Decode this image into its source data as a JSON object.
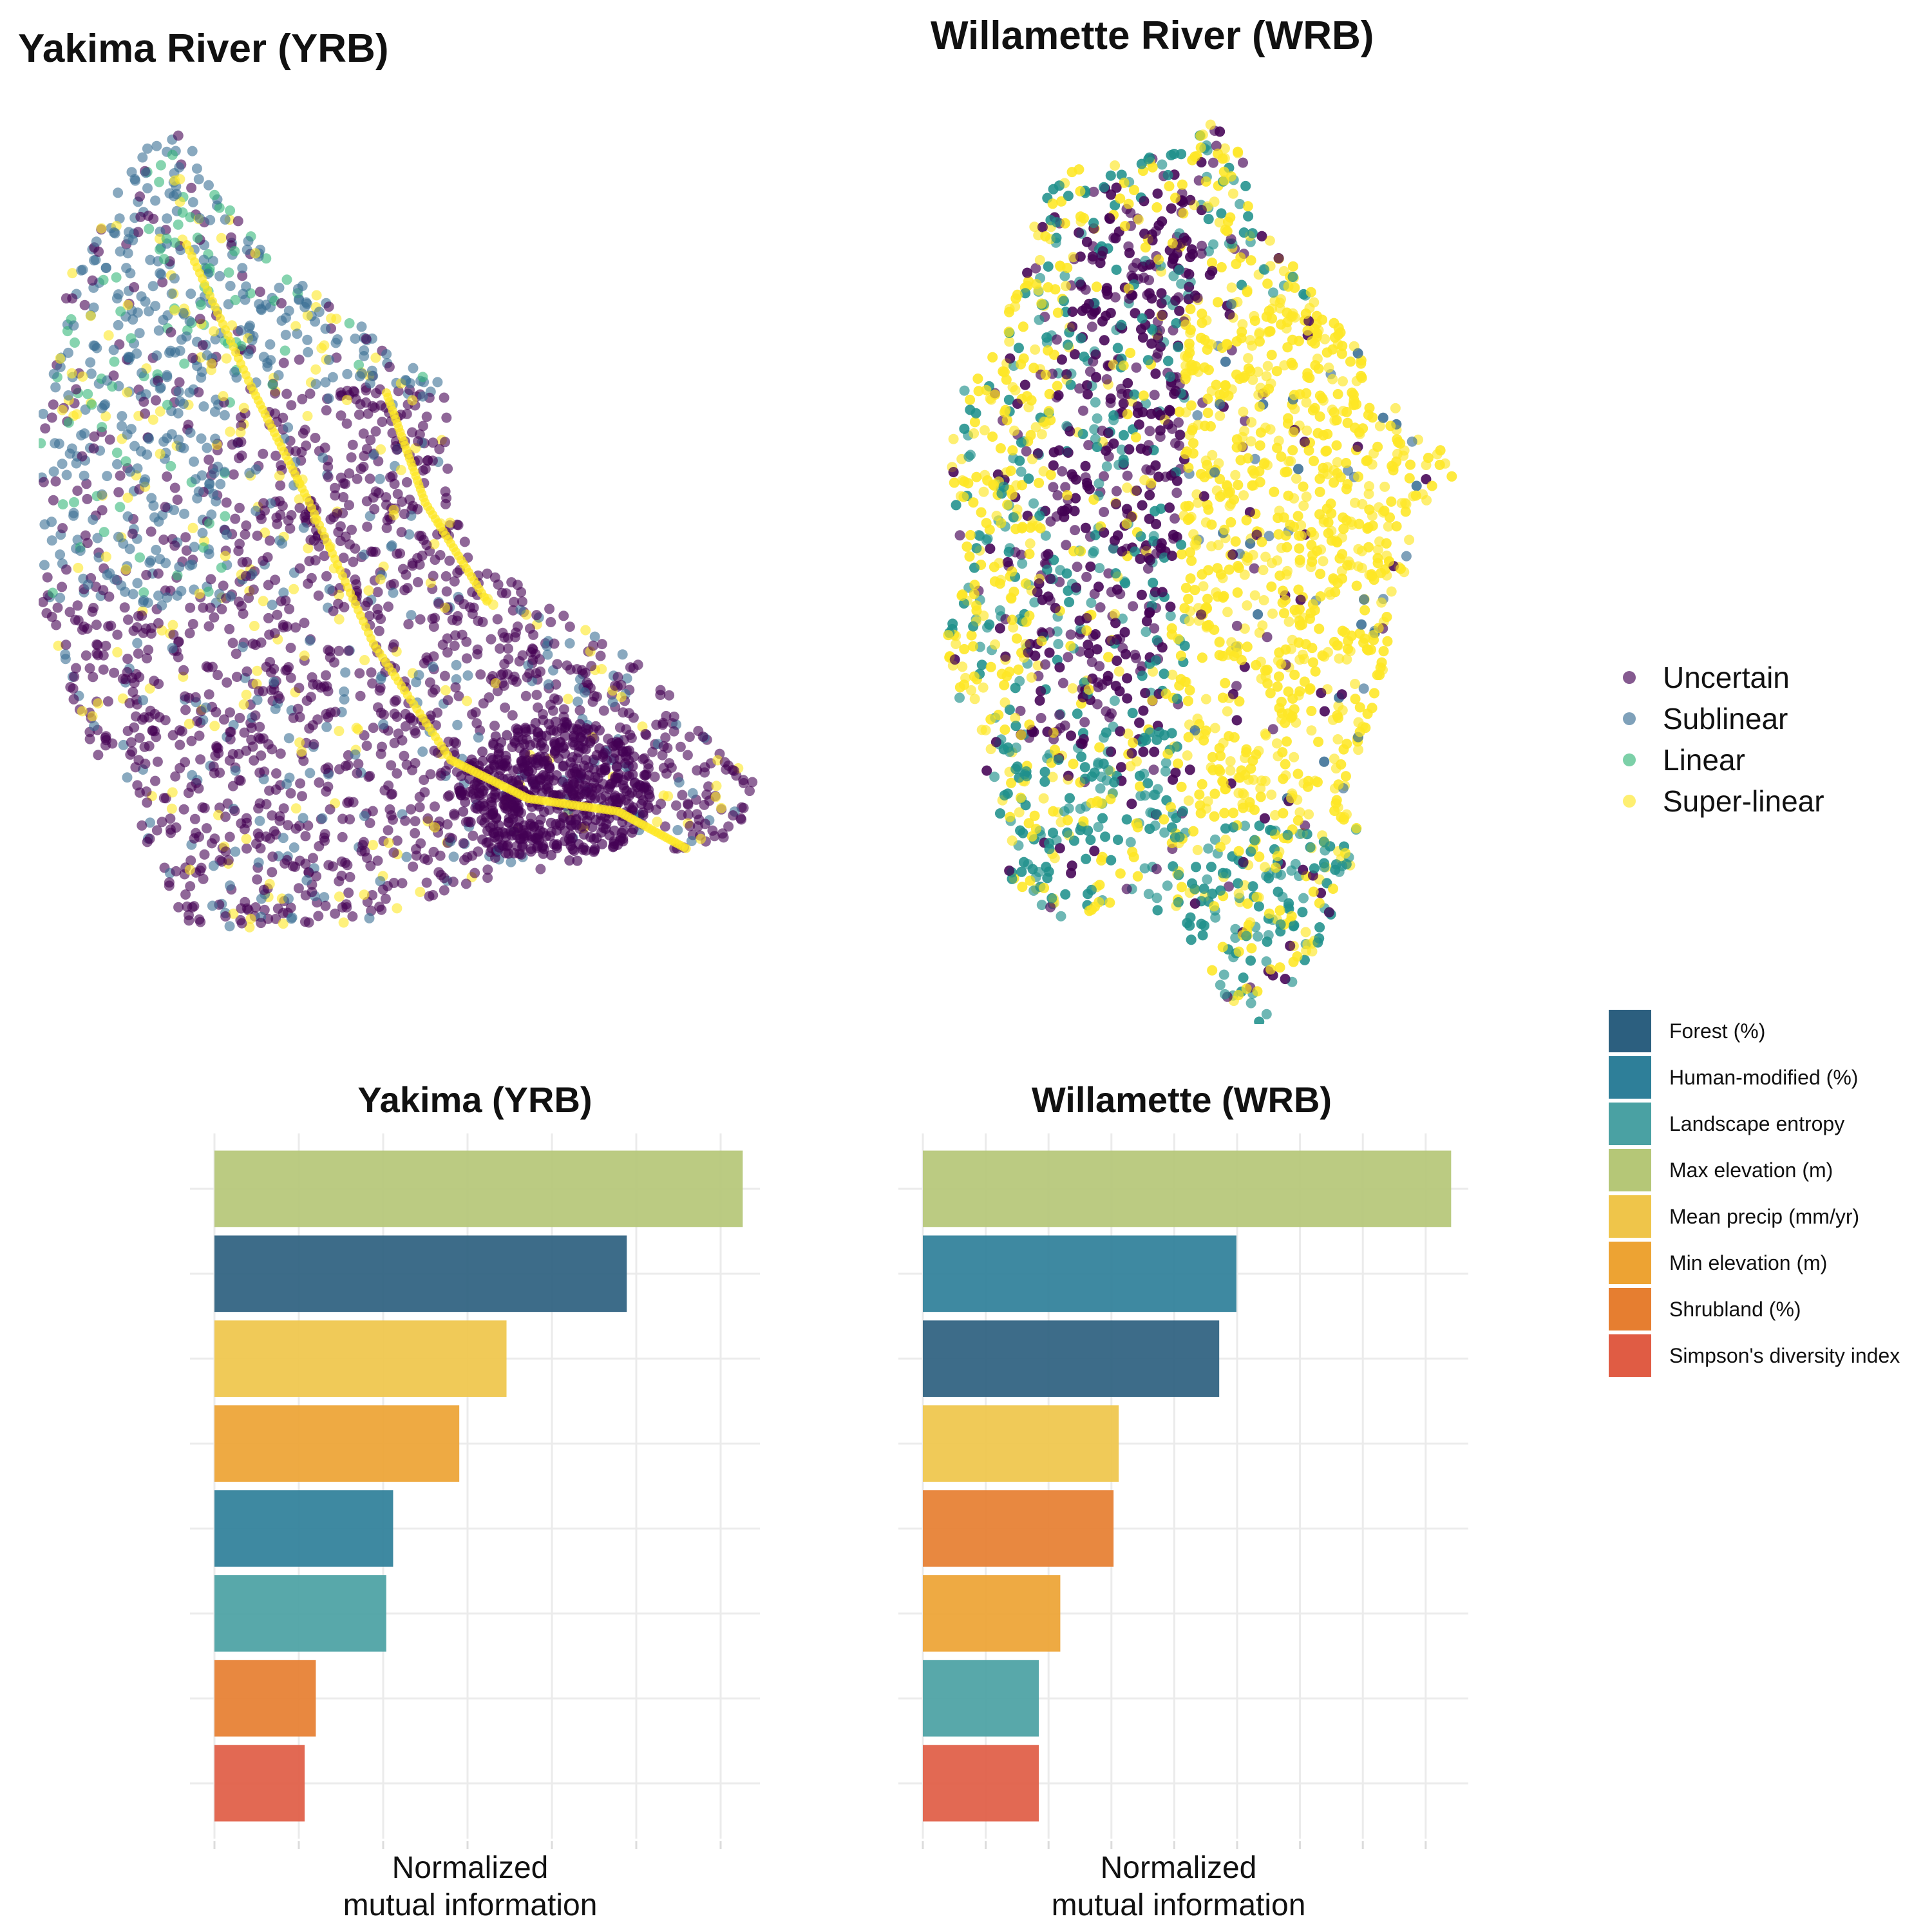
{
  "maps": {
    "yrb_title": "Yakima River (YRB)",
    "wrb_title": "Willamette River (WRB)"
  },
  "class_legend": [
    {
      "label": "Uncertain",
      "color": "#440154"
    },
    {
      "label": "Sublinear",
      "color": "#3b6f95"
    },
    {
      "label": "Linear",
      "color": "#35b779"
    },
    {
      "label": "Super-linear",
      "color": "#fde725"
    }
  ],
  "feature_legend": [
    {
      "label": "Forest (%)",
      "color": "#2c5f7f"
    },
    {
      "label": "Human-modified (%)",
      "color": "#2e7f99"
    },
    {
      "label": "Landscape entropy",
      "color": "#4aa1a3"
    },
    {
      "label": "Max elevation (m)",
      "color": "#b5c777"
    },
    {
      "label": "Mean precip (mm/yr)",
      "color": "#efc54a"
    },
    {
      "label": "Min elevation (m)",
      "color": "#eda333"
    },
    {
      "label": "Shrubland (%)",
      "color": "#e67e30"
    },
    {
      "label": "Simpson's diversity index",
      "color": "#e05c44"
    }
  ],
  "chart_data": [
    {
      "type": "bar",
      "orientation": "horizontal",
      "title": "Yakima (YRB)",
      "xlabel": "Normalized\nmutual information",
      "ylabel": "",
      "xlim": [
        0,
        0.62
      ],
      "grid": true,
      "tick_labels": "none",
      "categories": [
        "Max elevation (m)",
        "Forest (%)",
        "Mean precip (mm/yr)",
        "Min elevation (m)",
        "Human-modified (%)",
        "Landscape entropy",
        "Shrubland (%)",
        "Simpson's diversity index"
      ],
      "values": [
        0.615,
        0.48,
        0.34,
        0.285,
        0.208,
        0.2,
        0.118,
        0.105
      ]
    },
    {
      "type": "bar",
      "orientation": "horizontal",
      "title": "Willamette (WRB)",
      "xlabel": "Normalized\nmutual information",
      "ylabel": "",
      "xlim": [
        0,
        0.62
      ],
      "grid": true,
      "tick_labels": "none",
      "categories": [
        "Max elevation (m)",
        "Human-modified (%)",
        "Forest (%)",
        "Mean precip (mm/yr)",
        "Shrubland (%)",
        "Min elevation (m)",
        "Landscape entropy",
        "Simpson's diversity index"
      ],
      "values": [
        0.615,
        0.365,
        0.345,
        0.228,
        0.222,
        0.16,
        0.135,
        0.135
      ]
    }
  ]
}
